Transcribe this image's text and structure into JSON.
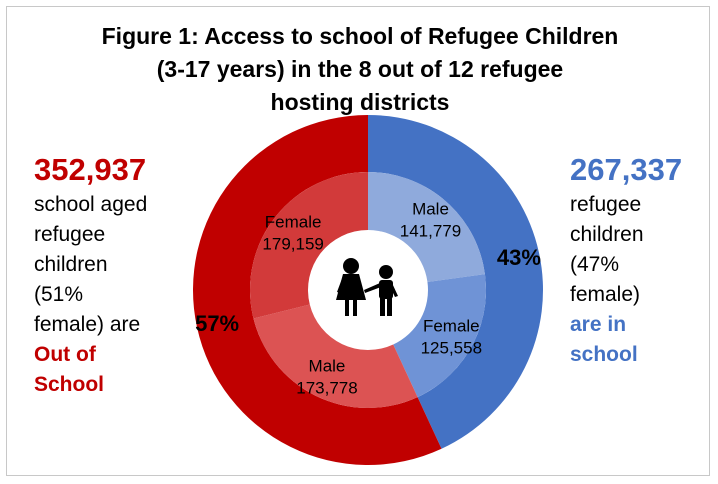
{
  "title_lines": [
    "Figure 1: Access to school of Refugee Children",
    "(3-17 years) in the 8 out of 12 refugee",
    "hosting districts"
  ],
  "left_panel": {
    "value": "352,937",
    "lines": [
      "school aged",
      "refugee",
      "children",
      "(51%",
      "female) are"
    ],
    "emphasis": [
      "Out of",
      "School"
    ],
    "color": "#c00000"
  },
  "right_panel": {
    "value": "267,337",
    "lines": [
      "refugee",
      "children",
      "(47%",
      "female)"
    ],
    "emphasis": [
      "are in",
      "school"
    ],
    "color": "#4472c4"
  },
  "icon": "children-icon",
  "chart_data": {
    "type": "pie",
    "subtype": "nested-donut",
    "outer_ring": [
      {
        "label": "In school",
        "value": 267337,
        "percent_label": "43%",
        "color": "#4472c4"
      },
      {
        "label": "Out of school",
        "value": 352937,
        "percent_label": "57%",
        "color": "#c00000"
      }
    ],
    "inner_ring": [
      {
        "label": "Male",
        "value": 141779,
        "value_label": "141,779",
        "group": "In school",
        "color": "#8faadc"
      },
      {
        "label": "Female",
        "value": 125558,
        "value_label": "125,558",
        "group": "In school",
        "color": "#6f93d6"
      },
      {
        "label": "Male",
        "value": 173778,
        "value_label": "173,778",
        "group": "Out of school",
        "color": "#dc5353"
      },
      {
        "label": "Female",
        "value": 179159,
        "value_label": "179,159",
        "group": "Out of school",
        "color": "#d23a3a"
      }
    ]
  }
}
